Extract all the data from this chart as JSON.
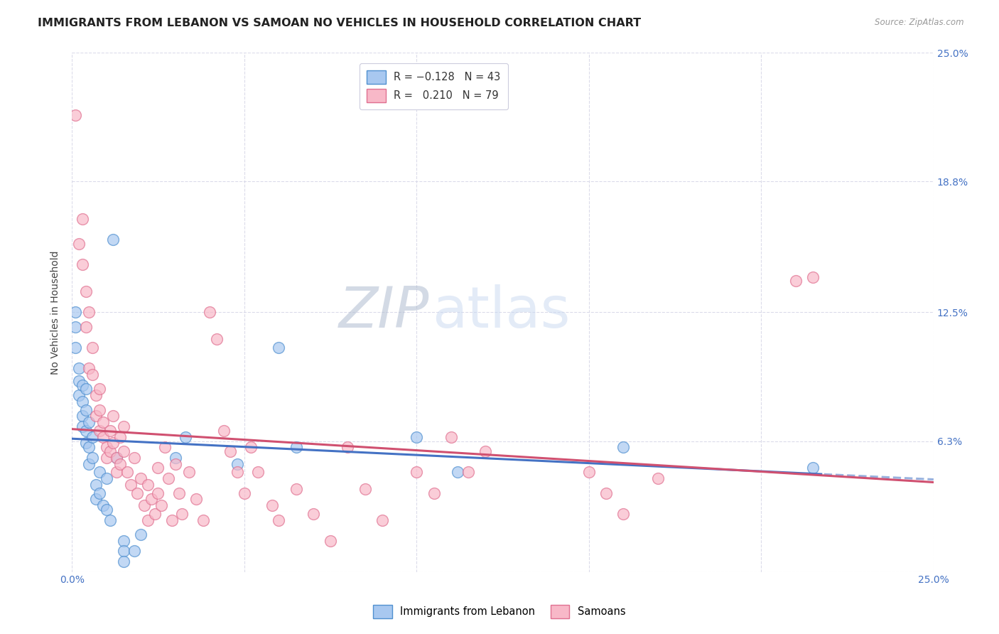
{
  "title": "IMMIGRANTS FROM LEBANON VS SAMOAN NO VEHICLES IN HOUSEHOLD CORRELATION CHART",
  "source": "Source: ZipAtlas.com",
  "ylabel": "No Vehicles in Household",
  "xlim": [
    0,
    0.25
  ],
  "ylim": [
    0,
    0.25
  ],
  "xtick_positions": [
    0.0,
    0.05,
    0.1,
    0.15,
    0.2,
    0.25
  ],
  "ytick_positions": [
    0.0,
    0.063,
    0.125,
    0.188,
    0.25
  ],
  "background_color": "#ffffff",
  "grid_color": "#d8d8e8",
  "title_fontsize": 11.5,
  "axis_label_fontsize": 10,
  "tick_fontsize": 10,
  "marker_size": 130,
  "line_width": 2.2,
  "series_blue": {
    "color": "#a8c8f0",
    "edge_color": "#5090d0",
    "points": [
      [
        0.001,
        0.125
      ],
      [
        0.001,
        0.118
      ],
      [
        0.001,
        0.108
      ],
      [
        0.002,
        0.098
      ],
      [
        0.002,
        0.092
      ],
      [
        0.002,
        0.085
      ],
      [
        0.003,
        0.09
      ],
      [
        0.003,
        0.082
      ],
      [
        0.003,
        0.075
      ],
      [
        0.003,
        0.07
      ],
      [
        0.004,
        0.088
      ],
      [
        0.004,
        0.078
      ],
      [
        0.004,
        0.068
      ],
      [
        0.004,
        0.062
      ],
      [
        0.005,
        0.072
      ],
      [
        0.005,
        0.06
      ],
      [
        0.005,
        0.052
      ],
      [
        0.006,
        0.065
      ],
      [
        0.006,
        0.055
      ],
      [
        0.007,
        0.042
      ],
      [
        0.007,
        0.035
      ],
      [
        0.008,
        0.048
      ],
      [
        0.008,
        0.038
      ],
      [
        0.009,
        0.032
      ],
      [
        0.01,
        0.045
      ],
      [
        0.01,
        0.03
      ],
      [
        0.011,
        0.025
      ],
      [
        0.012,
        0.16
      ],
      [
        0.013,
        0.055
      ],
      [
        0.015,
        0.015
      ],
      [
        0.015,
        0.01
      ],
      [
        0.015,
        0.005
      ],
      [
        0.018,
        0.01
      ],
      [
        0.02,
        0.018
      ],
      [
        0.03,
        0.055
      ],
      [
        0.033,
        0.065
      ],
      [
        0.048,
        0.052
      ],
      [
        0.06,
        0.108
      ],
      [
        0.065,
        0.06
      ],
      [
        0.1,
        0.065
      ],
      [
        0.112,
        0.048
      ],
      [
        0.16,
        0.06
      ],
      [
        0.215,
        0.05
      ]
    ]
  },
  "series_pink": {
    "color": "#f8b8c8",
    "edge_color": "#e07090",
    "points": [
      [
        0.001,
        0.22
      ],
      [
        0.002,
        0.158
      ],
      [
        0.003,
        0.17
      ],
      [
        0.003,
        0.148
      ],
      [
        0.004,
        0.135
      ],
      [
        0.004,
        0.118
      ],
      [
        0.005,
        0.125
      ],
      [
        0.005,
        0.098
      ],
      [
        0.006,
        0.108
      ],
      [
        0.006,
        0.095
      ],
      [
        0.007,
        0.085
      ],
      [
        0.007,
        0.075
      ],
      [
        0.008,
        0.088
      ],
      [
        0.008,
        0.078
      ],
      [
        0.008,
        0.068
      ],
      [
        0.009,
        0.072
      ],
      [
        0.009,
        0.065
      ],
      [
        0.01,
        0.06
      ],
      [
        0.01,
        0.055
      ],
      [
        0.011,
        0.068
      ],
      [
        0.011,
        0.058
      ],
      [
        0.012,
        0.075
      ],
      [
        0.012,
        0.062
      ],
      [
        0.013,
        0.055
      ],
      [
        0.013,
        0.048
      ],
      [
        0.014,
        0.065
      ],
      [
        0.014,
        0.052
      ],
      [
        0.015,
        0.07
      ],
      [
        0.015,
        0.058
      ],
      [
        0.016,
        0.048
      ],
      [
        0.017,
        0.042
      ],
      [
        0.018,
        0.055
      ],
      [
        0.019,
        0.038
      ],
      [
        0.02,
        0.045
      ],
      [
        0.021,
        0.032
      ],
      [
        0.022,
        0.042
      ],
      [
        0.022,
        0.025
      ],
      [
        0.023,
        0.035
      ],
      [
        0.024,
        0.028
      ],
      [
        0.025,
        0.05
      ],
      [
        0.025,
        0.038
      ],
      [
        0.026,
        0.032
      ],
      [
        0.027,
        0.06
      ],
      [
        0.028,
        0.045
      ],
      [
        0.029,
        0.025
      ],
      [
        0.03,
        0.052
      ],
      [
        0.031,
        0.038
      ],
      [
        0.032,
        0.028
      ],
      [
        0.034,
        0.048
      ],
      [
        0.036,
        0.035
      ],
      [
        0.038,
        0.025
      ],
      [
        0.04,
        0.125
      ],
      [
        0.042,
        0.112
      ],
      [
        0.044,
        0.068
      ],
      [
        0.046,
        0.058
      ],
      [
        0.048,
        0.048
      ],
      [
        0.05,
        0.038
      ],
      [
        0.052,
        0.06
      ],
      [
        0.054,
        0.048
      ],
      [
        0.058,
        0.032
      ],
      [
        0.06,
        0.025
      ],
      [
        0.065,
        0.04
      ],
      [
        0.07,
        0.028
      ],
      [
        0.075,
        0.015
      ],
      [
        0.08,
        0.06
      ],
      [
        0.085,
        0.04
      ],
      [
        0.09,
        0.025
      ],
      [
        0.1,
        0.048
      ],
      [
        0.105,
        0.038
      ],
      [
        0.11,
        0.065
      ],
      [
        0.115,
        0.048
      ],
      [
        0.12,
        0.058
      ],
      [
        0.15,
        0.048
      ],
      [
        0.155,
        0.038
      ],
      [
        0.16,
        0.028
      ],
      [
        0.17,
        0.045
      ],
      [
        0.21,
        0.14
      ],
      [
        0.215,
        0.142
      ]
    ]
  }
}
